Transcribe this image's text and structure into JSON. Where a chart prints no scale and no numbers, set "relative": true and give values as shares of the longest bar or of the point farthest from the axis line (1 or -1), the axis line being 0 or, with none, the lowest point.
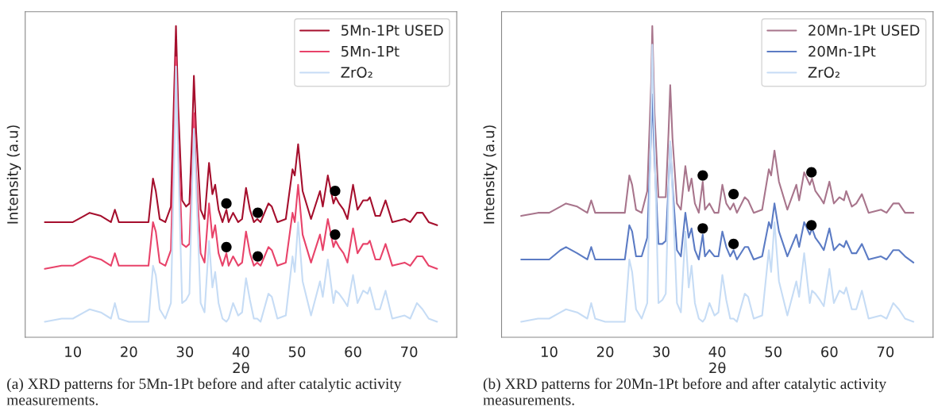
{
  "chart_data": [
    {
      "type": "line",
      "relative": true,
      "xlabel": "2θ",
      "ylabel": "Intensity (a.u)",
      "xlim": [
        1.5,
        78.5
      ],
      "xticks": [
        10,
        20,
        30,
        40,
        50,
        60,
        70
      ],
      "tick_labels": "x",
      "grid": false,
      "legend": "top right",
      "line_style": "solid",
      "x": [
        5,
        8,
        10,
        12,
        13,
        15,
        16.8,
        17.5,
        18.2,
        20,
        22,
        23.5,
        24.3,
        24.8,
        25.5,
        26.5,
        27.5,
        28.2,
        28.4,
        28.8,
        29.5,
        30.2,
        30.8,
        31.3,
        31.6,
        32,
        32.8,
        33.5,
        34.3,
        34.9,
        35.4,
        36,
        36.7,
        37.4,
        37.8,
        38.6,
        39.5,
        40.2,
        40.9,
        41.6,
        42.3,
        42.9,
        43.5,
        44.9,
        45.5,
        46.5,
        48,
        49.2,
        49.6,
        50.2,
        51,
        52.5,
        54.1,
        54.6,
        55.5,
        56.5,
        56.9,
        57.5,
        58.3,
        59,
        60,
        60.8,
        61.8,
        62.6,
        63,
        64,
        64.8,
        65.8,
        67,
        69.2,
        70.2,
        71.4,
        72.4,
        73.5,
        75
      ],
      "series": [
        {
          "name": "5Mn-1Pt USED",
          "color": "#a50f2d",
          "values": [
            0.37,
            0.37,
            0.37,
            0.39,
            0.4,
            0.39,
            0.37,
            0.41,
            0.37,
            0.37,
            0.37,
            0.37,
            0.51,
            0.47,
            0.38,
            0.37,
            0.42,
            0.87,
            1.0,
            0.74,
            0.44,
            0.42,
            0.43,
            0.66,
            0.84,
            0.66,
            0.41,
            0.38,
            0.56,
            0.46,
            0.49,
            0.41,
            0.37,
            0.41,
            0.37,
            0.4,
            0.37,
            0.38,
            0.48,
            0.41,
            0.37,
            0.38,
            0.37,
            0.43,
            0.42,
            0.37,
            0.38,
            0.54,
            0.52,
            0.62,
            0.47,
            0.38,
            0.47,
            0.42,
            0.52,
            0.43,
            0.45,
            0.43,
            0.41,
            0.38,
            0.49,
            0.41,
            0.44,
            0.44,
            0.45,
            0.39,
            0.39,
            0.44,
            0.37,
            0.38,
            0.37,
            0.4,
            0.4,
            0.37,
            0.36
          ]
        },
        {
          "name": "5Mn-1Pt",
          "color": "#e8436a",
          "values": [
            0.22,
            0.23,
            0.23,
            0.25,
            0.26,
            0.25,
            0.23,
            0.27,
            0.23,
            0.23,
            0.23,
            0.23,
            0.37,
            0.34,
            0.24,
            0.23,
            0.28,
            0.76,
            0.9,
            0.64,
            0.3,
            0.29,
            0.3,
            0.54,
            0.72,
            0.53,
            0.27,
            0.24,
            0.43,
            0.32,
            0.36,
            0.27,
            0.23,
            0.27,
            0.23,
            0.26,
            0.23,
            0.24,
            0.34,
            0.27,
            0.23,
            0.24,
            0.23,
            0.29,
            0.28,
            0.23,
            0.24,
            0.4,
            0.37,
            0.49,
            0.33,
            0.24,
            0.33,
            0.28,
            0.38,
            0.29,
            0.31,
            0.29,
            0.27,
            0.24,
            0.35,
            0.27,
            0.3,
            0.3,
            0.31,
            0.25,
            0.25,
            0.3,
            0.23,
            0.24,
            0.23,
            0.26,
            0.26,
            0.23,
            0.22
          ]
        },
        {
          "name": "ZrO₂",
          "color": "#c6dcf5",
          "values": [
            0.05,
            0.06,
            0.06,
            0.08,
            0.09,
            0.08,
            0.06,
            0.11,
            0.06,
            0.05,
            0.05,
            0.05,
            0.23,
            0.2,
            0.09,
            0.06,
            0.11,
            0.66,
            0.87,
            0.57,
            0.11,
            0.12,
            0.14,
            0.49,
            0.67,
            0.49,
            0.11,
            0.08,
            0.31,
            0.16,
            0.21,
            0.11,
            0.06,
            0.05,
            0.06,
            0.11,
            0.07,
            0.08,
            0.19,
            0.12,
            0.06,
            0.06,
            0.05,
            0.14,
            0.13,
            0.06,
            0.07,
            0.26,
            0.21,
            0.37,
            0.18,
            0.07,
            0.18,
            0.13,
            0.25,
            0.11,
            0.15,
            0.14,
            0.12,
            0.1,
            0.2,
            0.11,
            0.15,
            0.14,
            0.16,
            0.09,
            0.09,
            0.15,
            0.06,
            0.07,
            0.06,
            0.11,
            0.09,
            0.06,
            0.05
          ]
        },
        {
          "type": "scatter",
          "marker": "circle",
          "color": "#000000",
          "x": [
            37.4,
            43.0,
            56.8,
            37.4,
            43.0,
            56.8
          ],
          "values": [
            0.43,
            0.4,
            0.47,
            0.29,
            0.26,
            0.33
          ]
        }
      ],
      "annotations": [
        "(a) XRD patterns for 5Mn-1Pt before and after catalytic activity measurements."
      ]
    },
    {
      "type": "line",
      "relative": true,
      "xlabel": "2θ",
      "ylabel": "Intensity (a.u)",
      "xlim": [
        1.5,
        78.5
      ],
      "xticks": [
        10,
        20,
        30,
        40,
        50,
        60,
        70
      ],
      "tick_labels": "x",
      "grid": false,
      "legend": "top right",
      "line_style": "solid",
      "x": [
        5,
        8,
        10,
        12,
        13,
        15,
        16.8,
        17.5,
        18.2,
        20,
        22,
        23.5,
        24.3,
        24.8,
        25.5,
        26.5,
        27.5,
        28.2,
        28.4,
        28.8,
        29.5,
        30.2,
        30.8,
        31.3,
        31.6,
        32,
        32.8,
        33.5,
        34.3,
        34.9,
        35.4,
        36,
        36.7,
        37.4,
        37.8,
        38.6,
        39.5,
        40.2,
        40.9,
        41.6,
        42.3,
        42.9,
        43.5,
        44.9,
        45.5,
        46.5,
        48,
        49.2,
        49.6,
        50.2,
        51,
        52.5,
        54.1,
        54.6,
        55.5,
        56.5,
        56.9,
        57.5,
        58.3,
        59,
        60,
        60.8,
        61.8,
        62.6,
        63,
        64,
        64.8,
        65.8,
        67,
        69.2,
        70.2,
        71.4,
        72.4,
        73.5,
        75
      ],
      "series": [
        {
          "name": "20Mn-1Pt USED",
          "color": "#a8758c",
          "values": [
            0.39,
            0.4,
            0.4,
            0.42,
            0.43,
            0.42,
            0.4,
            0.44,
            0.4,
            0.4,
            0.4,
            0.4,
            0.52,
            0.49,
            0.41,
            0.4,
            0.47,
            0.82,
            1.0,
            0.72,
            0.45,
            0.45,
            0.45,
            0.66,
            0.81,
            0.64,
            0.43,
            0.41,
            0.55,
            0.47,
            0.51,
            0.43,
            0.4,
            0.5,
            0.41,
            0.43,
            0.4,
            0.4,
            0.49,
            0.43,
            0.41,
            0.43,
            0.4,
            0.45,
            0.44,
            0.4,
            0.41,
            0.54,
            0.52,
            0.6,
            0.5,
            0.41,
            0.49,
            0.44,
            0.53,
            0.49,
            0.51,
            0.47,
            0.45,
            0.43,
            0.5,
            0.43,
            0.45,
            0.44,
            0.47,
            0.42,
            0.43,
            0.46,
            0.4,
            0.41,
            0.4,
            0.43,
            0.43,
            0.4,
            0.4
          ]
        },
        {
          "name": "20Mn-1Pt",
          "color": "#5b7bc4",
          "values": [
            0.25,
            0.25,
            0.25,
            0.28,
            0.29,
            0.27,
            0.25,
            0.29,
            0.25,
            0.25,
            0.25,
            0.25,
            0.36,
            0.34,
            0.26,
            0.26,
            0.32,
            0.66,
            0.78,
            0.57,
            0.3,
            0.3,
            0.31,
            0.49,
            0.62,
            0.49,
            0.28,
            0.26,
            0.4,
            0.32,
            0.35,
            0.28,
            0.25,
            0.33,
            0.26,
            0.28,
            0.26,
            0.26,
            0.34,
            0.29,
            0.26,
            0.28,
            0.25,
            0.29,
            0.29,
            0.25,
            0.26,
            0.37,
            0.35,
            0.43,
            0.34,
            0.26,
            0.33,
            0.29,
            0.37,
            0.33,
            0.35,
            0.32,
            0.3,
            0.28,
            0.35,
            0.28,
            0.3,
            0.29,
            0.31,
            0.27,
            0.27,
            0.3,
            0.25,
            0.26,
            0.25,
            0.28,
            0.28,
            0.26,
            0.24
          ]
        },
        {
          "name": "ZrO₂",
          "color": "#c6dcf5",
          "values": [
            0.05,
            0.06,
            0.06,
            0.08,
            0.09,
            0.08,
            0.06,
            0.11,
            0.06,
            0.05,
            0.05,
            0.05,
            0.25,
            0.21,
            0.09,
            0.06,
            0.11,
            0.72,
            0.94,
            0.62,
            0.11,
            0.12,
            0.14,
            0.47,
            0.63,
            0.47,
            0.11,
            0.08,
            0.34,
            0.16,
            0.23,
            0.11,
            0.06,
            0.05,
            0.06,
            0.11,
            0.07,
            0.08,
            0.2,
            0.12,
            0.06,
            0.06,
            0.05,
            0.14,
            0.13,
            0.06,
            0.07,
            0.28,
            0.21,
            0.37,
            0.18,
            0.07,
            0.18,
            0.13,
            0.27,
            0.11,
            0.15,
            0.14,
            0.12,
            0.1,
            0.22,
            0.11,
            0.15,
            0.14,
            0.16,
            0.09,
            0.09,
            0.15,
            0.06,
            0.07,
            0.06,
            0.11,
            0.09,
            0.06,
            0.05
          ]
        },
        {
          "type": "scatter",
          "marker": "circle",
          "color": "#000000",
          "x": [
            37.4,
            42.9,
            56.8,
            37.4,
            42.9,
            56.8
          ],
          "values": [
            0.52,
            0.46,
            0.53,
            0.35,
            0.3,
            0.36
          ]
        }
      ],
      "annotations": [
        "(b) XRD patterns for 20Mn-1Pt before and after catalytic activity measurements."
      ]
    }
  ]
}
